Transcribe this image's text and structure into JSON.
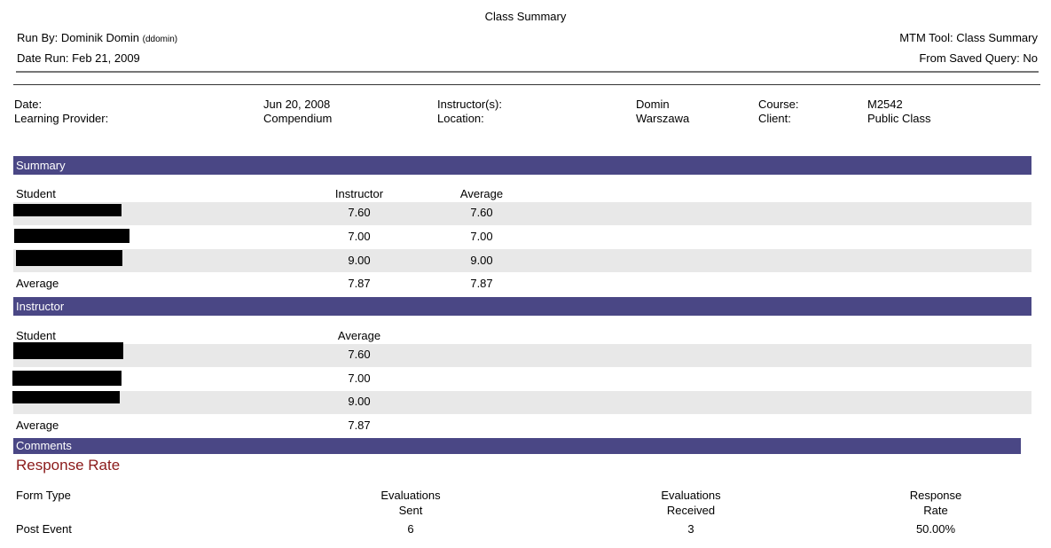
{
  "report": {
    "title": "Class Summary",
    "run_by_label": "Run By:",
    "run_by_name": "Dominik Domin",
    "run_by_user": "(ddomin)",
    "date_run_label": "Date Run:",
    "date_run_value": "Feb 21, 2009",
    "tool_label": "MTM Tool:",
    "tool_value": "Class Summary",
    "saved_query_label": "From Saved Query:",
    "saved_query_value": "No"
  },
  "info": {
    "date_label": "Date:",
    "date_value": "Jun 20, 2008",
    "provider_label": "Learning Provider:",
    "provider_value": "Compendium",
    "instructors_label": "Instructor(s):",
    "instructors_value": "Domin",
    "location_label": "Location:",
    "location_value": "Warszawa",
    "course_label": "Course:",
    "course_value": "M2542",
    "client_label": "Client:",
    "client_value": "Public Class"
  },
  "colors": {
    "band": "#4a4785",
    "stripe": "#e8e8e8",
    "heading_red": "#8b1a1a"
  },
  "summary": {
    "band": "Summary",
    "col_student": "Student",
    "col_instructor": "Instructor",
    "col_average": "Average",
    "rows": [
      {
        "instructor": "7.60",
        "average": "7.60"
      },
      {
        "instructor": "7.00",
        "average": "7.00"
      },
      {
        "instructor": "9.00",
        "average": "9.00"
      }
    ],
    "avg_label": "Average",
    "avg_instructor": "7.87",
    "avg_average": "7.87"
  },
  "instructor": {
    "band": "Instructor",
    "col_student": "Student",
    "col_average": "Average",
    "rows": [
      {
        "average": "7.60"
      },
      {
        "average": "7.00"
      },
      {
        "average": "9.00"
      }
    ],
    "avg_label": "Average",
    "avg_average": "7.87"
  },
  "comments": {
    "band": "Comments"
  },
  "response_rate": {
    "heading": "Response Rate",
    "col_form_type": "Form Type",
    "col_sent_1": "Evaluations",
    "col_sent_2": "Sent",
    "col_received_1": "Evaluations",
    "col_received_2": "Received",
    "col_rate_1": "Response",
    "col_rate_2": "Rate",
    "row": {
      "form_type": "Post Event",
      "sent": "6",
      "received": "3",
      "rate": "50.00%"
    }
  }
}
